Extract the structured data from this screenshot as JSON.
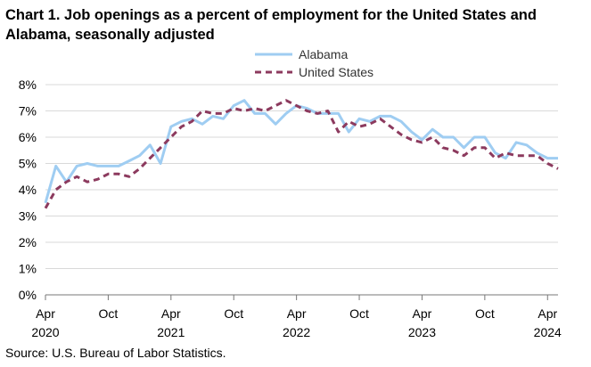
{
  "chart_data": {
    "type": "line",
    "title": "Chart 1. Job openings as a percent of employment for the United States and Alabama, seasonally adjusted",
    "source": "Source: U.S. Bureau of Labor Statistics.",
    "ylabel": "",
    "xlabel": "",
    "ylim": [
      0,
      8
    ],
    "y_ticks": [
      "0%",
      "1%",
      "2%",
      "3%",
      "4%",
      "5%",
      "6%",
      "7%",
      "8%"
    ],
    "x_ticks": [
      {
        "month": "Apr",
        "year": "2020"
      },
      {
        "month": "Oct",
        "year": ""
      },
      {
        "month": "Apr",
        "year": "2021"
      },
      {
        "month": "Oct",
        "year": ""
      },
      {
        "month": "Apr",
        "year": "2022"
      },
      {
        "month": "Oct",
        "year": ""
      },
      {
        "month": "Apr",
        "year": "2023"
      },
      {
        "month": "Oct",
        "year": ""
      },
      {
        "month": "Apr",
        "year": "2024"
      }
    ],
    "x_start": "Apr 2020",
    "x_end": "Apr 2024",
    "gridlines": true,
    "legend_position": "top-center",
    "series": [
      {
        "name": "Alabama",
        "color": "#9fcdf2",
        "style": "solid",
        "values": [
          3.5,
          4.9,
          4.3,
          4.9,
          5.0,
          4.9,
          4.9,
          4.9,
          5.1,
          5.3,
          5.7,
          5.0,
          6.4,
          6.6,
          6.7,
          6.5,
          6.8,
          6.7,
          7.2,
          7.4,
          6.9,
          6.9,
          6.5,
          6.9,
          7.2,
          7.1,
          6.9,
          6.9,
          6.9,
          6.2,
          6.7,
          6.6,
          6.8,
          6.8,
          6.6,
          6.2,
          5.9,
          6.3,
          6.0,
          6.0,
          5.6,
          6.0,
          6.0,
          5.4,
          5.2,
          5.8,
          5.7,
          5.4,
          5.2,
          5.2
        ]
      },
      {
        "name": "United States",
        "color": "#8c3a5e",
        "style": "dashed",
        "values": [
          3.3,
          4.0,
          4.3,
          4.5,
          4.3,
          4.4,
          4.6,
          4.6,
          4.5,
          4.8,
          5.2,
          5.6,
          6.0,
          6.4,
          6.6,
          7.0,
          6.9,
          6.9,
          7.1,
          7.0,
          7.1,
          7.0,
          7.2,
          7.4,
          7.2,
          7.0,
          6.9,
          7.0,
          6.2,
          6.6,
          6.4,
          6.5,
          6.7,
          6.4,
          6.1,
          5.9,
          5.8,
          6.0,
          5.6,
          5.5,
          5.3,
          5.6,
          5.6,
          5.2,
          5.4,
          5.3,
          5.3,
          5.3,
          5.0,
          4.8
        ]
      }
    ]
  }
}
